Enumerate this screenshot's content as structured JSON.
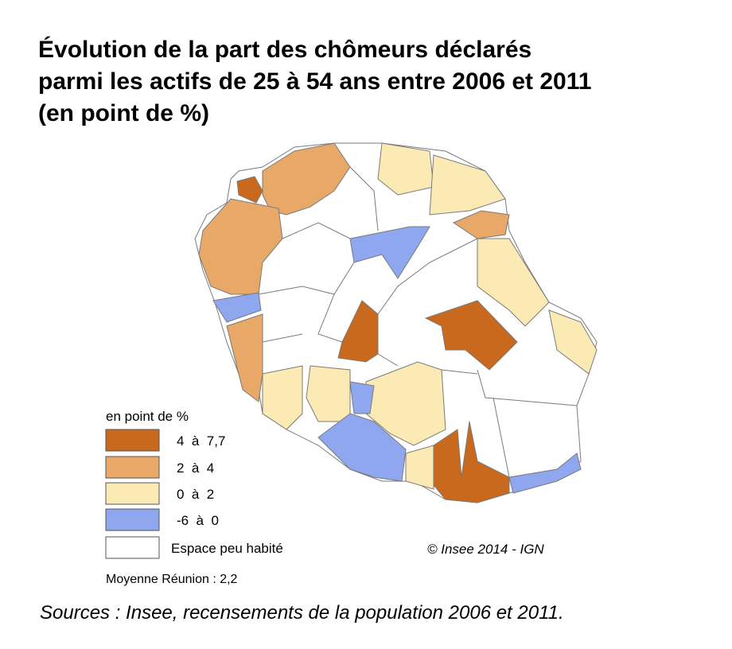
{
  "title": [
    "Évolution de la part des chômeurs déclarés",
    "parmi les actifs de 25 à 54 ans entre 2006 et 2011",
    "(en point de %)"
  ],
  "legend": {
    "title": "en point de %",
    "items": [
      {
        "label": "4  à  7,7",
        "color": "#c8691e"
      },
      {
        "label": "2  à  4",
        "color": "#e8a868"
      },
      {
        "label": "0  à  2",
        "color": "#fbeab3"
      },
      {
        "label": "-6  à  0",
        "color": "#8fa7ef"
      },
      {
        "label": "Espace peu habité",
        "color": "#ffffff"
      }
    ]
  },
  "copyright": "© Insee 2014 - IGN",
  "average": "Moyenne Réunion : 2,2",
  "sources": "Sources : Insee, recensements de la population 2006 et 2011."
}
